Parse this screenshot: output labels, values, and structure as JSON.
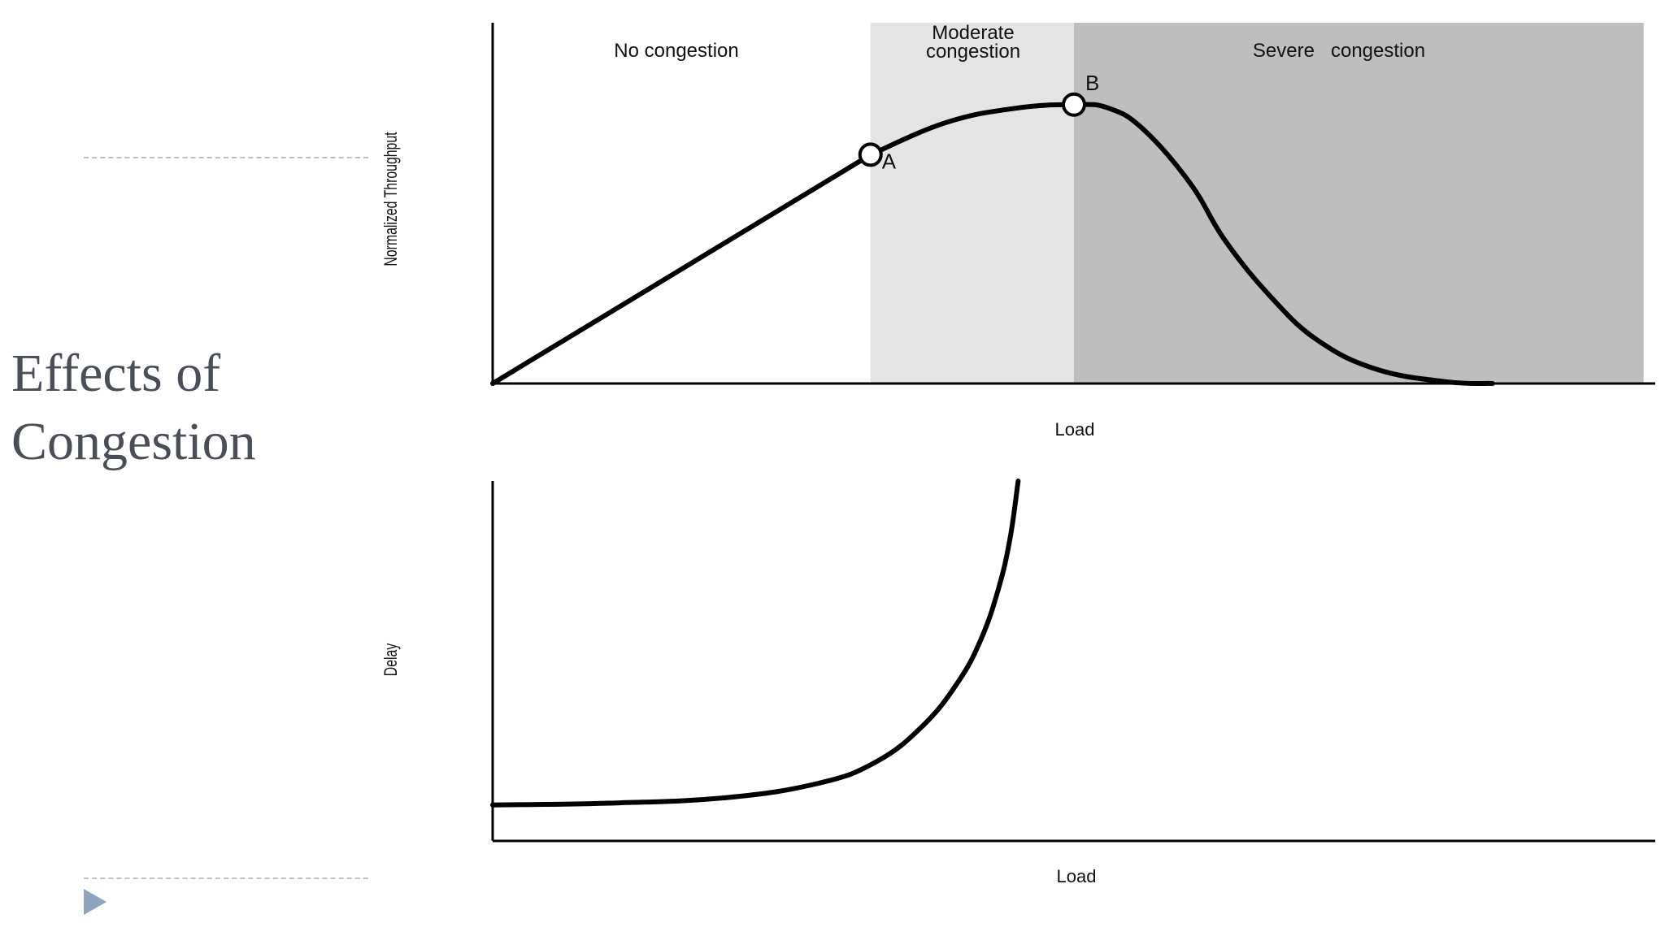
{
  "slide": {
    "title_line1": "Effects of",
    "title_line2": "Congestion"
  },
  "chart_data": [
    {
      "type": "line",
      "xlabel": "Load",
      "ylabel": "Normalized Throughput",
      "regions": [
        {
          "label": "No congestion",
          "color": "#ffffff"
        },
        {
          "label_line1": "Moderate",
          "label_line2": "congestion",
          "color": "#e4e4e4"
        },
        {
          "label": "Severe   congestion",
          "color": "#bebebe"
        }
      ],
      "points": [
        {
          "label": "A",
          "x": 0.325,
          "y": 0.64
        },
        {
          "label": "B",
          "x": 0.5,
          "y": 0.78
        }
      ],
      "series": [
        {
          "values": [
            [
              0,
              0
            ],
            [
              0.325,
              0.64
            ],
            [
              0.39,
              0.73
            ],
            [
              0.45,
              0.77
            ],
            [
              0.5,
              0.78
            ],
            [
              0.53,
              0.77
            ],
            [
              0.56,
              0.71
            ],
            [
              0.6,
              0.56
            ],
            [
              0.63,
              0.4
            ],
            [
              0.67,
              0.24
            ],
            [
              0.71,
              0.12
            ],
            [
              0.76,
              0.04
            ],
            [
              0.82,
              0.005
            ],
            [
              0.86,
              0
            ]
          ]
        }
      ],
      "xlim": [
        0,
        1
      ],
      "ylim": [
        0,
        1
      ]
    },
    {
      "type": "line",
      "xlabel": "Load",
      "ylabel": "Delay",
      "series": [
        {
          "values": [
            [
              0,
              0.1
            ],
            [
              0.1,
              0.105
            ],
            [
              0.2,
              0.12
            ],
            [
              0.28,
              0.16
            ],
            [
              0.33,
              0.22
            ],
            [
              0.37,
              0.32
            ],
            [
              0.4,
              0.44
            ],
            [
              0.42,
              0.56
            ],
            [
              0.435,
              0.7
            ],
            [
              0.445,
              0.84
            ],
            [
              0.452,
              1.0
            ]
          ]
        }
      ],
      "xlim": [
        0,
        1
      ],
      "ylim": [
        0,
        1
      ]
    }
  ]
}
